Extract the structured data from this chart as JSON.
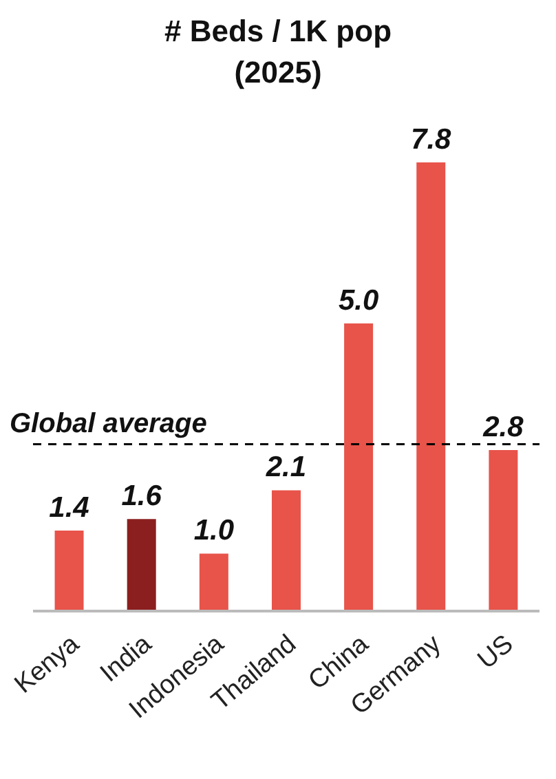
{
  "chart_data": {
    "type": "bar",
    "title": "# Beds / 1K pop",
    "subtitle": "(2025)",
    "categories": [
      "Kenya",
      "India",
      "Indonesia",
      "Thailand",
      "China",
      "Germany",
      "US"
    ],
    "values": [
      1.4,
      1.6,
      1.0,
      2.1,
      5.0,
      7.8,
      2.8
    ],
    "colors": [
      "#e8534a",
      "#8b1f1f",
      "#e8534a",
      "#e8534a",
      "#e8534a",
      "#e8534a",
      "#e8534a"
    ],
    "value_labels": [
      "1.4",
      "1.6",
      "1.0",
      "2.1",
      "5.0",
      "7.8",
      "2.8"
    ],
    "ref_lines": [
      {
        "axis": "y",
        "value": 2.9,
        "label": "Global average",
        "color": "#000000",
        "line_style": "dashed"
      }
    ],
    "grid": false,
    "legend": false
  }
}
